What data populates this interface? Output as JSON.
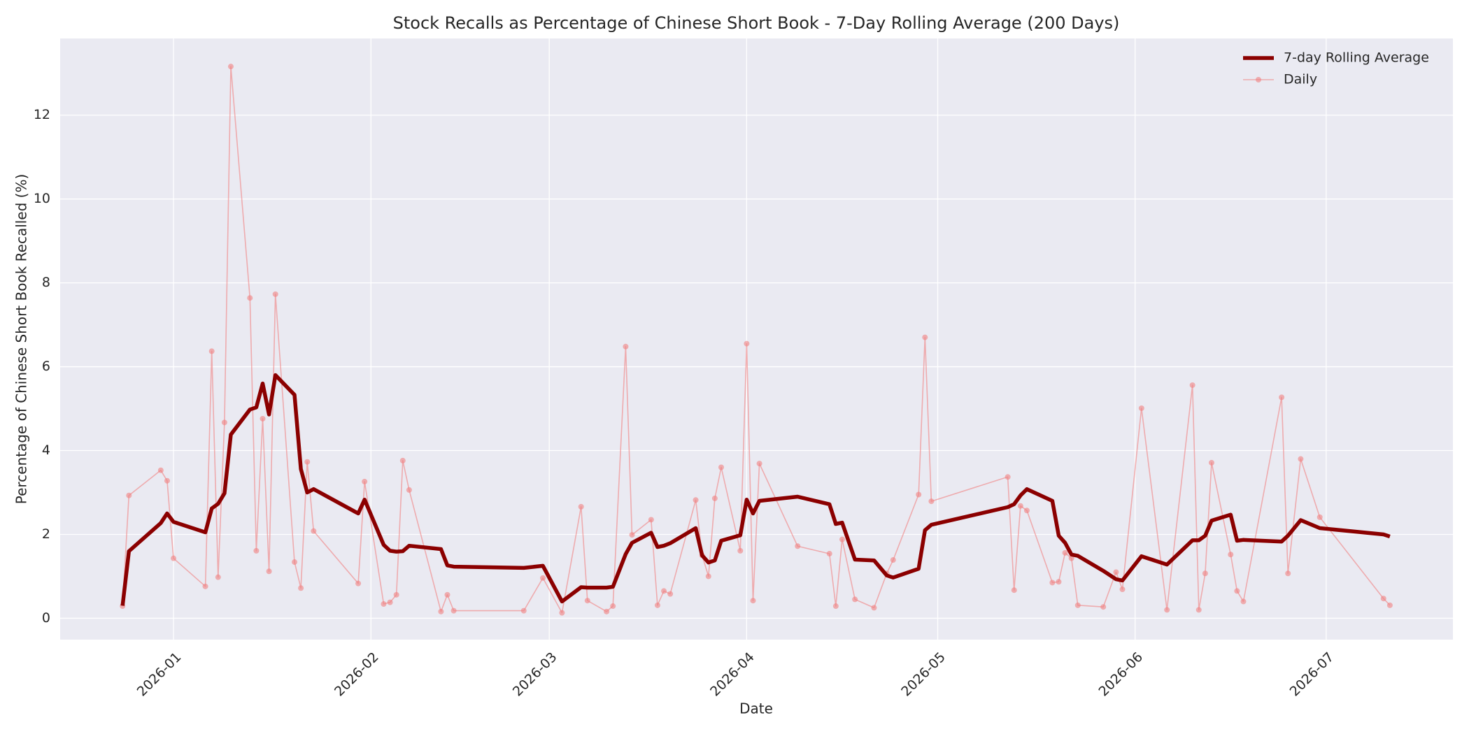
{
  "chart_data": {
    "type": "line",
    "title": "Stock Recalls as Percentage of Chinese Short Book - 7-Day Rolling Average (200 Days)",
    "x_label": "Date",
    "y_label": "Percentage of Chinese Short Book Recalled (%)",
    "x": [
      -8,
      -7,
      -2,
      -1,
      0,
      5,
      6,
      7,
      8,
      9,
      12,
      13,
      14,
      15,
      16,
      19,
      20,
      21,
      22,
      29,
      30,
      33,
      34,
      35,
      36,
      37,
      42,
      43,
      44,
      55,
      58,
      61,
      64,
      65,
      68,
      69,
      71,
      72,
      75,
      76,
      77,
      78,
      82,
      83,
      84,
      85,
      86,
      89,
      90,
      91,
      92,
      98,
      103,
      104,
      105,
      107,
      110,
      112,
      113,
      117,
      118,
      119,
      131,
      132,
      133,
      134,
      138,
      139,
      140,
      141,
      142,
      146,
      148,
      149,
      152,
      156,
      160,
      161,
      162,
      163,
      166,
      167,
      168,
      174,
      175,
      177,
      180,
      190,
      191
    ],
    "series": [
      {
        "name": "7-day Rolling Average",
        "color": "#8b0000",
        "linewidth": 5.5,
        "marker": false,
        "values": [
          0.3,
          1.6,
          2.27,
          2.5,
          2.3,
          2.05,
          2.62,
          2.73,
          2.98,
          4.38,
          4.98,
          5.03,
          5.6,
          4.86,
          5.8,
          5.33,
          3.56,
          3.0,
          3.08,
          2.5,
          2.83,
          1.75,
          1.61,
          1.59,
          1.6,
          1.73,
          1.65,
          1.26,
          1.23,
          1.2,
          1.25,
          0.4,
          0.74,
          0.73,
          0.73,
          0.75,
          1.53,
          1.8,
          2.04,
          1.7,
          1.73,
          1.79,
          2.15,
          1.5,
          1.33,
          1.38,
          1.85,
          1.98,
          2.83,
          2.5,
          2.8,
          2.9,
          2.72,
          2.25,
          2.28,
          1.4,
          1.38,
          1.02,
          0.97,
          1.18,
          2.1,
          2.23,
          2.65,
          2.72,
          2.93,
          3.08,
          2.8,
          1.97,
          1.8,
          1.52,
          1.49,
          1.13,
          0.93,
          0.9,
          1.48,
          1.28,
          1.86,
          1.86,
          1.97,
          2.33,
          2.47,
          1.85,
          1.87,
          1.83,
          1.97,
          2.34,
          2.15,
          2.0,
          1.95
        ]
      },
      {
        "name": "Daily",
        "color": "#f08080",
        "linewidth": 1.6,
        "marker": true,
        "values": [
          0.29,
          2.93,
          3.53,
          3.28,
          1.43,
          0.76,
          6.37,
          0.98,
          4.67,
          13.16,
          7.64,
          1.61,
          4.76,
          1.12,
          7.73,
          1.34,
          0.72,
          3.73,
          2.08,
          0.83,
          3.26,
          0.34,
          0.38,
          0.56,
          3.76,
          3.06,
          0.16,
          0.56,
          0.18,
          0.18,
          0.96,
          0.13,
          2.66,
          0.42,
          0.16,
          0.29,
          6.48,
          1.99,
          2.35,
          0.31,
          0.65,
          0.58,
          2.82,
          1.5,
          1.0,
          2.86,
          3.6,
          1.61,
          6.55,
          0.42,
          3.69,
          1.72,
          1.54,
          0.29,
          1.88,
          0.45,
          0.25,
          1.07,
          1.39,
          2.95,
          6.7,
          2.79,
          3.37,
          0.67,
          2.68,
          2.57,
          0.85,
          0.87,
          1.56,
          1.43,
          0.31,
          0.27,
          1.1,
          0.69,
          5.01,
          0.2,
          5.56,
          0.2,
          1.07,
          3.71,
          1.52,
          0.65,
          0.4,
          5.27,
          1.07,
          3.8,
          2.41,
          0.47,
          0.31
        ]
      }
    ],
    "xlim": [
      -17.8,
      200.9
    ],
    "xticks": [
      {
        "value": 0,
        "label": "2026-01"
      },
      {
        "value": 31,
        "label": "2026-02"
      },
      {
        "value": 59,
        "label": "2026-03"
      },
      {
        "value": 90,
        "label": "2026-04"
      },
      {
        "value": 120,
        "label": "2026-05"
      },
      {
        "value": 151,
        "label": "2026-06"
      },
      {
        "value": 181,
        "label": "2026-07"
      }
    ],
    "ylim": [
      -0.51,
      13.83
    ],
    "yticks": [
      0,
      2,
      4,
      6,
      8,
      10,
      12
    ],
    "grid": true,
    "legend": "upper right"
  }
}
